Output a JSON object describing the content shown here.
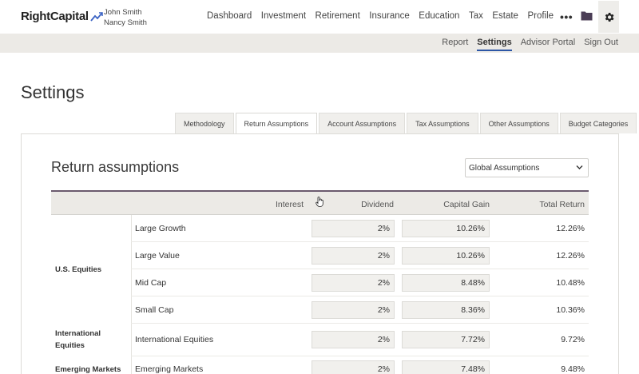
{
  "app": {
    "logo_text": "RightCapital",
    "clients": [
      "John Smith",
      "Nancy Smith"
    ],
    "nav": [
      "Dashboard",
      "Investment",
      "Retirement",
      "Insurance",
      "Education",
      "Tax",
      "Estate",
      "Profile"
    ],
    "more_label": "•••",
    "subnav": [
      "Report",
      "Settings",
      "Advisor Portal",
      "Sign Out"
    ],
    "subnav_active": "Settings"
  },
  "page": {
    "title": "Settings",
    "tabs": [
      "Methodology",
      "Return Assumptions",
      "Account Assumptions",
      "Tax Assumptions",
      "Other Assumptions",
      "Budget Categories"
    ],
    "active_tab": "Return Assumptions"
  },
  "section": {
    "title": "Return assumptions",
    "select_value": "Global Assumptions"
  },
  "table": {
    "headers": [
      "Interest",
      "Dividend",
      "Capital Gain",
      "Total Return"
    ],
    "groups": [
      {
        "label": "U.S. Equities",
        "rows": [
          {
            "name": "Large Growth",
            "interest": "",
            "dividend": "2%",
            "capital_gain": "10.26%",
            "total": "12.26%"
          },
          {
            "name": "Large Value",
            "interest": "",
            "dividend": "2%",
            "capital_gain": "10.26%",
            "total": "12.26%"
          },
          {
            "name": "Mid Cap",
            "interest": "",
            "dividend": "2%",
            "capital_gain": "8.48%",
            "total": "10.48%"
          },
          {
            "name": "Small Cap",
            "interest": "",
            "dividend": "2%",
            "capital_gain": "8.36%",
            "total": "10.36%"
          }
        ]
      },
      {
        "label": "International Equities",
        "label_lines": [
          "International",
          "Equities"
        ],
        "rows": [
          {
            "name": "International Equities",
            "interest": "",
            "dividend": "2%",
            "capital_gain": "7.72%",
            "total": "9.72%"
          }
        ]
      },
      {
        "label": "Emerging Markets",
        "rows": [
          {
            "name": "Emerging Markets",
            "interest": "",
            "dividend": "2%",
            "capital_gain": "7.48%",
            "total": "9.48%"
          }
        ]
      }
    ]
  },
  "colors": {
    "accent": "#2d57a6",
    "header_border": "#6b5a6e",
    "subbar_bg": "#eceae6"
  },
  "icons": [
    "chart-line-logo-icon",
    "more-icon",
    "folder-icon",
    "gear-icon",
    "chevron-down-icon",
    "hand-cursor-icon"
  ]
}
